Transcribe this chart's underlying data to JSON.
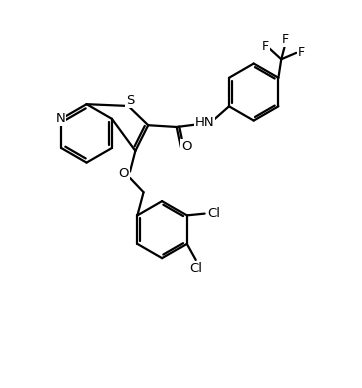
{
  "bg_color": "#ffffff",
  "line_color": "#000000",
  "line_width": 1.6,
  "font_size": 9.5,
  "fig_width": 3.62,
  "fig_height": 3.88,
  "dpi": 100,
  "xlim": [
    0,
    10
  ],
  "ylim": [
    0,
    10.7
  ]
}
